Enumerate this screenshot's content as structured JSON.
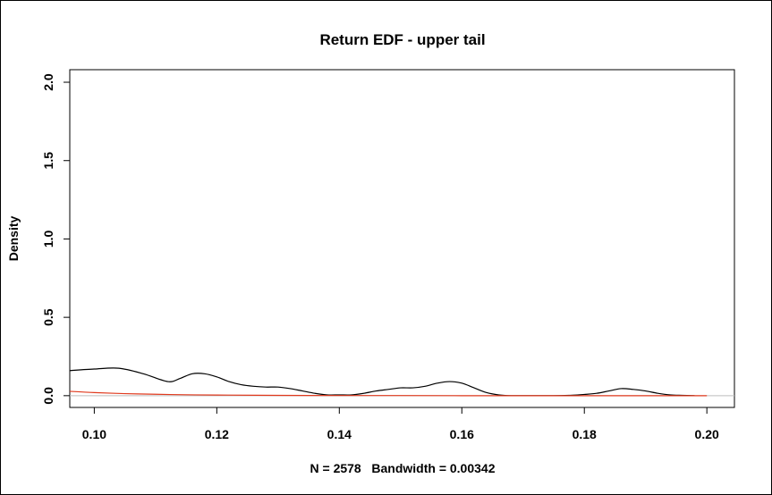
{
  "chart_data": {
    "type": "line",
    "title": "Return EDF - upper tail",
    "xlabel": "N = 2578   Bandwidth = 0.00342",
    "ylabel": "Density",
    "xlim": [
      0.096,
      0.2045
    ],
    "ylim": [
      -0.075,
      2.08
    ],
    "x_ticks": [
      0.1,
      0.12,
      0.14,
      0.16,
      0.18,
      0.2
    ],
    "x_tick_labels": [
      "0.10",
      "0.12",
      "0.14",
      "0.16",
      "0.18",
      "0.20"
    ],
    "y_ticks": [
      0.0,
      0.5,
      1.0,
      1.5,
      2.0
    ],
    "y_tick_labels": [
      "0.0",
      "0.5",
      "1.0",
      "1.5",
      "2.0"
    ],
    "series": [
      {
        "color": "#000000",
        "x": [
          0.096,
          0.1,
          0.104,
          0.108,
          0.112,
          0.114,
          0.116,
          0.118,
          0.12,
          0.122,
          0.124,
          0.126,
          0.128,
          0.13,
          0.132,
          0.134,
          0.136,
          0.138,
          0.14,
          0.142,
          0.144,
          0.146,
          0.148,
          0.15,
          0.152,
          0.154,
          0.156,
          0.158,
          0.16,
          0.162,
          0.164,
          0.166,
          0.168,
          0.17,
          0.175,
          0.178,
          0.18,
          0.182,
          0.184,
          0.186,
          0.188,
          0.19,
          0.192,
          0.194,
          0.196,
          0.198
        ],
        "y": [
          0.16,
          0.17,
          0.175,
          0.14,
          0.09,
          0.11,
          0.14,
          0.14,
          0.12,
          0.09,
          0.07,
          0.06,
          0.055,
          0.055,
          0.045,
          0.03,
          0.015,
          0.005,
          0.005,
          0.005,
          0.015,
          0.03,
          0.04,
          0.05,
          0.05,
          0.06,
          0.08,
          0.09,
          0.08,
          0.05,
          0.02,
          0.005,
          0.0,
          0.0,
          0.0,
          0.003,
          0.008,
          0.015,
          0.03,
          0.045,
          0.04,
          0.03,
          0.015,
          0.005,
          0.002,
          0.0
        ]
      },
      {
        "color": "#e03a1e",
        "x": [
          0.096,
          0.1,
          0.105,
          0.11,
          0.115,
          0.12,
          0.13,
          0.14,
          0.15,
          0.16,
          0.17,
          0.18,
          0.19,
          0.2
        ],
        "y": [
          0.028,
          0.02,
          0.013,
          0.009,
          0.006,
          0.004,
          0.002,
          0.001,
          0.001,
          0.0,
          0.0,
          0.0,
          0.0,
          0.0
        ]
      }
    ]
  }
}
